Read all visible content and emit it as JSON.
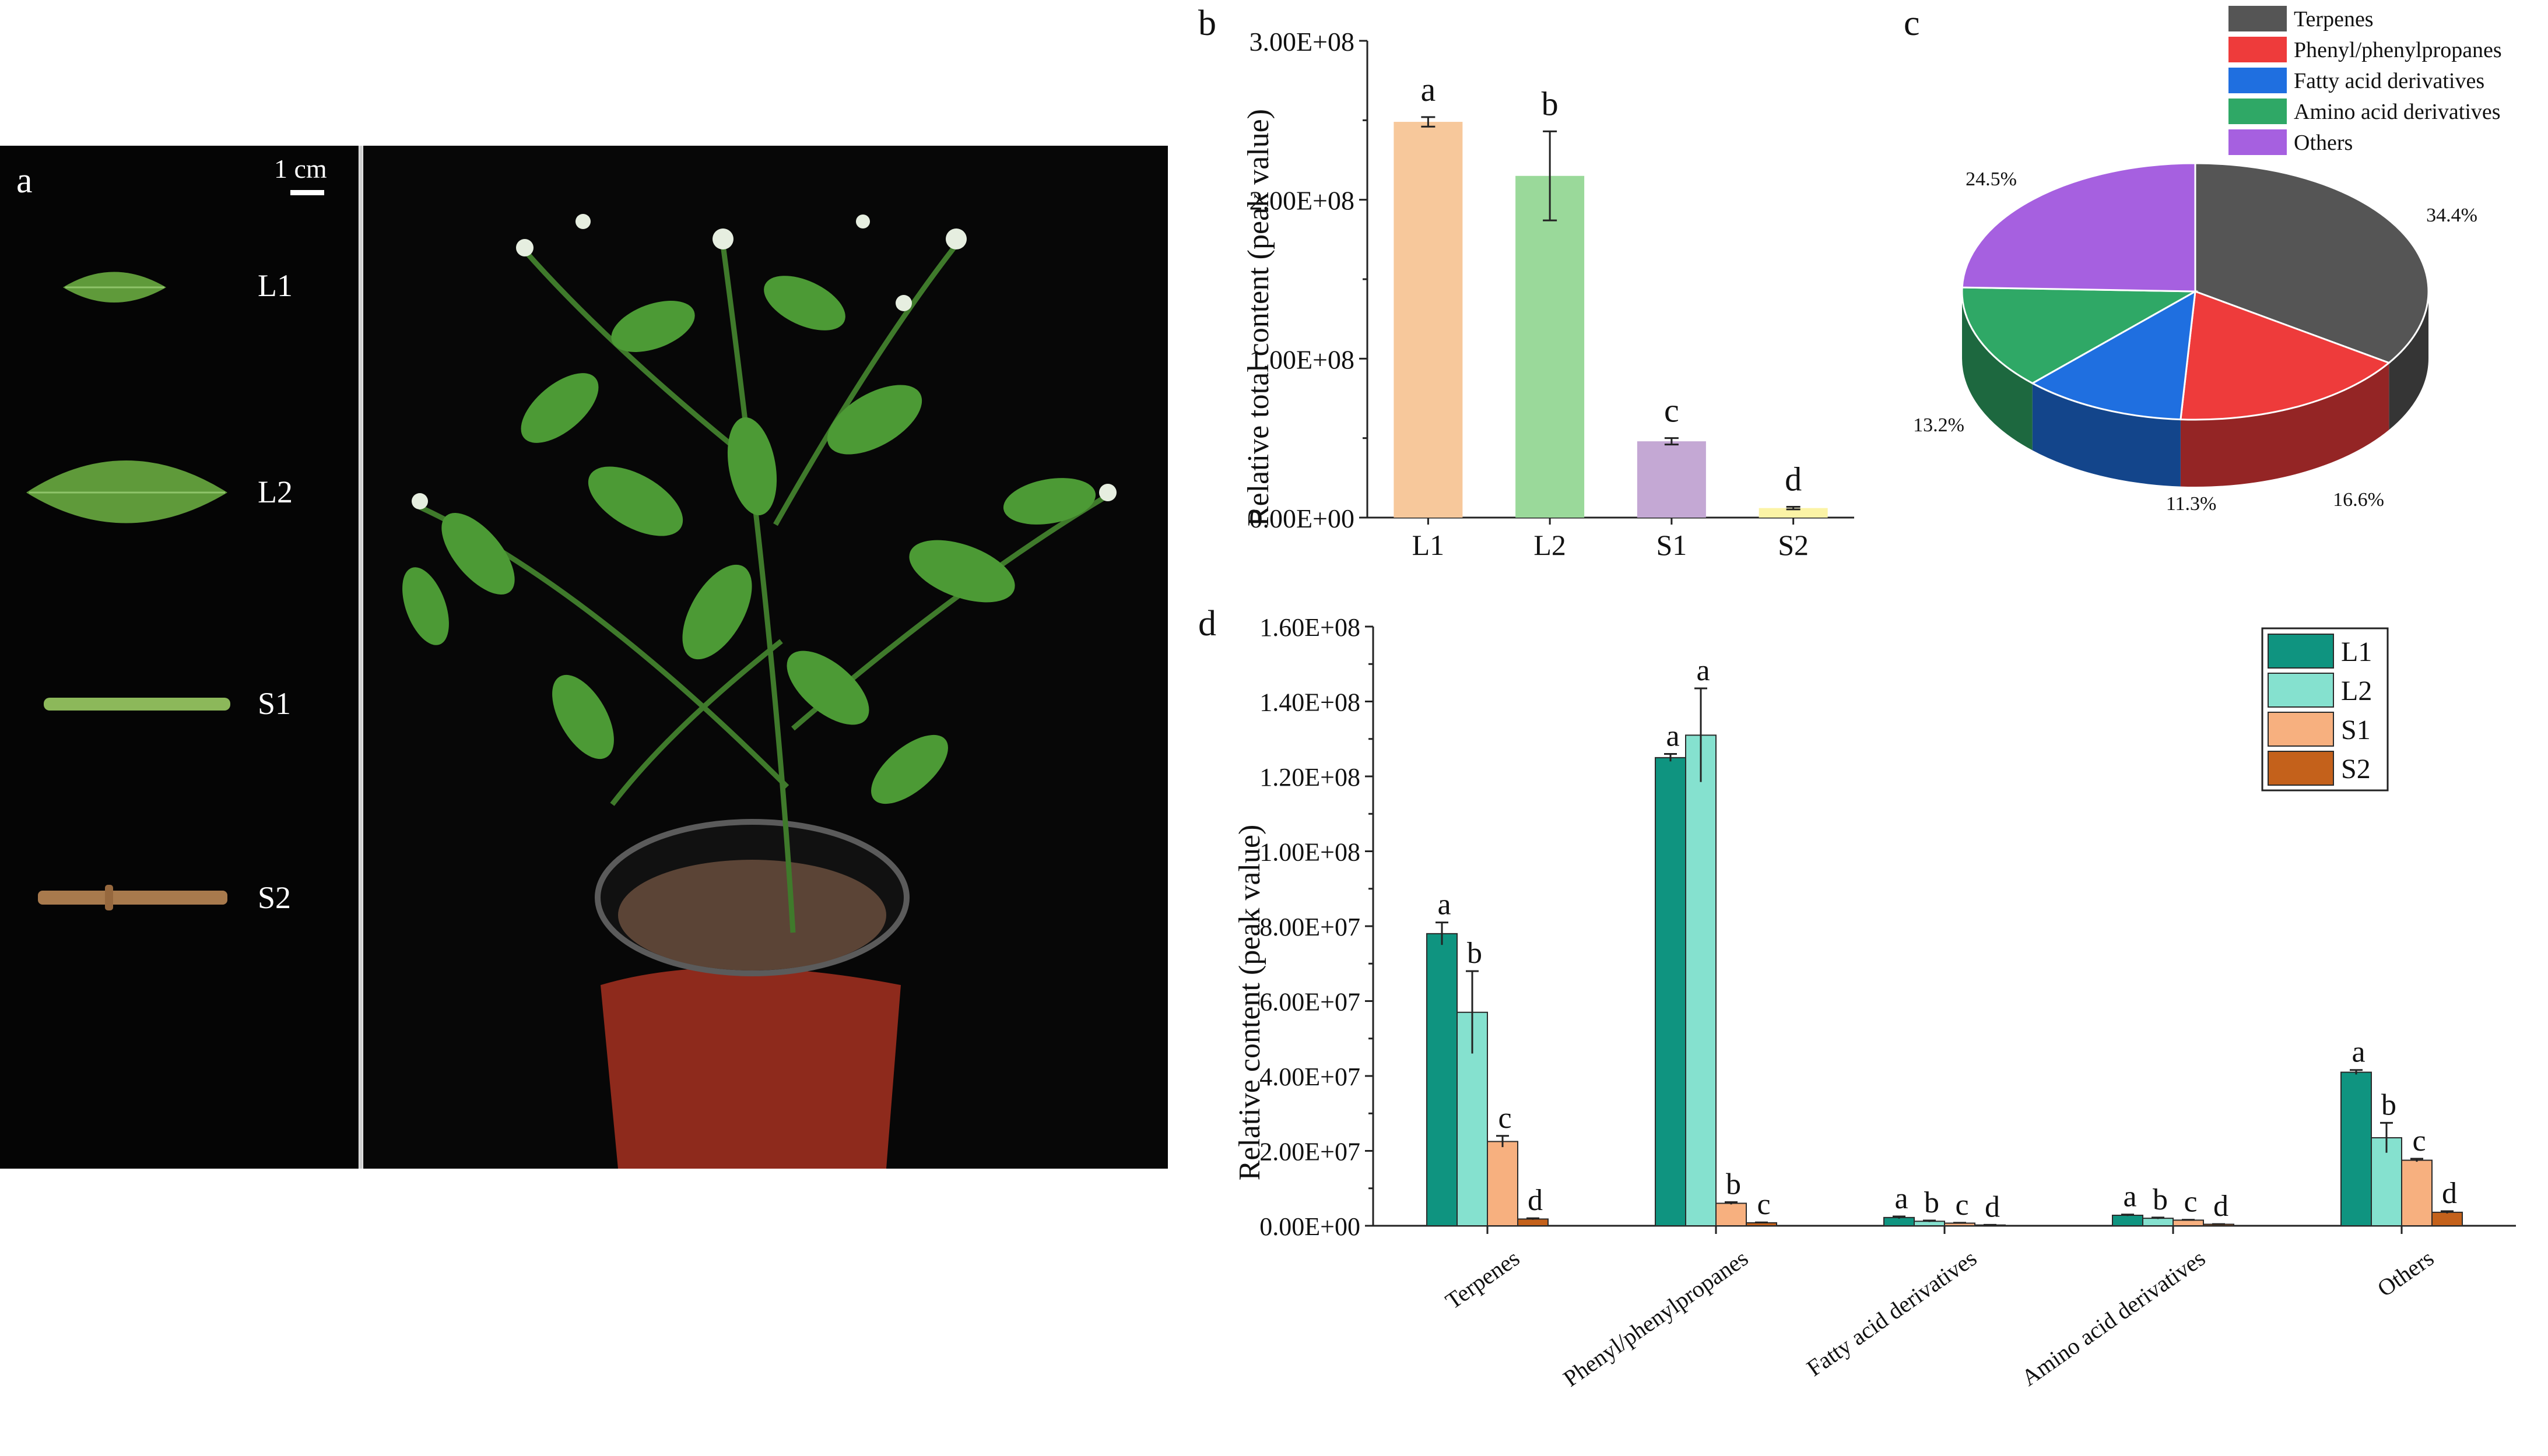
{
  "panel_letters": {
    "a": "a",
    "b": "b",
    "c": "c",
    "d": "d"
  },
  "photo": {
    "scale_label": "1 cm",
    "samples": [
      {
        "label": "L1",
        "description": "small leaf"
      },
      {
        "label": "L2",
        "description": "large leaf"
      },
      {
        "label": "S1",
        "description": "green stem"
      },
      {
        "label": "S2",
        "description": "brown stem"
      }
    ],
    "colors": {
      "background": "#050505",
      "leaf": "#5f9a3a",
      "stem_green": "#8cb85a",
      "stem_brown": "#a87a4d",
      "pot": "#8e2a1c"
    }
  },
  "chart_data": [
    {
      "id": "b",
      "type": "bar",
      "title": "",
      "xlabel": "",
      "ylabel": "Relative total content (peak value)",
      "categories": [
        "L1",
        "L2",
        "S1",
        "S2"
      ],
      "values": [
        249000000,
        215000000,
        48000000,
        6000000
      ],
      "errors": [
        3000000,
        28000000,
        2000000,
        800000
      ],
      "letters": [
        "a",
        "b",
        "c",
        "d"
      ],
      "colors": [
        "#f7c89b",
        "#9ad99a",
        "#c4a8d4",
        "#fbf3a6"
      ],
      "ylim": [
        0,
        300000000
      ],
      "yticks": [
        0,
        100000000,
        200000000,
        300000000
      ],
      "ytick_labels": [
        "0.00E+00",
        "1.00E+08",
        "2.00E+08",
        "3.00E+08"
      ],
      "grid": false
    },
    {
      "id": "c",
      "type": "pie",
      "title": "",
      "labels": [
        "Terpenes",
        "Phenyl/phenylpropanes",
        "Fatty acid derivatives",
        "Amino acid derivatives",
        "Others"
      ],
      "values": [
        34.4,
        16.6,
        11.3,
        13.2,
        24.5
      ],
      "value_labels": [
        "34.4%",
        "16.6%",
        "11.3%",
        "13.2%",
        "24.5%"
      ],
      "colors": [
        "#555555",
        "#ee3b3b",
        "#1f6fe0",
        "#2fa866",
        "#a660e0"
      ],
      "legend_position": "top-right"
    },
    {
      "id": "d",
      "type": "bar",
      "title": "",
      "xlabel": "",
      "ylabel": "Relative  content (peak value)",
      "categories": [
        "Terpenes",
        "Phenyl/phenylpropanes",
        "Fatty acid derivatives",
        "Amino acid derivatives",
        "Others"
      ],
      "series": [
        {
          "name": "L1",
          "color": "#0f9480",
          "values": [
            78000000,
            125000000,
            2200000,
            2800000,
            41000000
          ],
          "errors": [
            3000000,
            1000000,
            300000,
            200000,
            600000
          ],
          "letters": [
            "a",
            "a",
            "a",
            "a",
            "a"
          ]
        },
        {
          "name": "L2",
          "color": "#85e1cf",
          "values": [
            57000000,
            131000000,
            1200000,
            2000000,
            23500000
          ],
          "errors": [
            11000000,
            12500000,
            200000,
            200000,
            4000000
          ],
          "letters": [
            "b",
            "a",
            "b",
            "b",
            "b"
          ]
        },
        {
          "name": "S1",
          "color": "#f7b07f",
          "values": [
            22500000,
            6000000,
            700000,
            1500000,
            17500000
          ],
          "errors": [
            1500000,
            300000,
            100000,
            100000,
            400000
          ],
          "letters": [
            "c",
            "b",
            "c",
            "c",
            "c"
          ]
        },
        {
          "name": "S2",
          "color": "#c4611b",
          "values": [
            1800000,
            800000,
            200000,
            400000,
            3600000
          ],
          "errors": [
            200000,
            100000,
            50000,
            50000,
            300000
          ],
          "letters": [
            "d",
            "c",
            "d",
            "d",
            "d"
          ]
        }
      ],
      "ylim": [
        0,
        160000000
      ],
      "yticks": [
        0,
        20000000,
        40000000,
        60000000,
        80000000,
        100000000,
        120000000,
        140000000,
        160000000
      ],
      "ytick_labels": [
        "0.00E+00",
        "2.00E+07",
        "4.00E+07",
        "6.00E+07",
        "8.00E+07",
        "1.00E+08",
        "1.20E+08",
        "1.40E+08",
        "1.60E+08"
      ],
      "legend_position": "top-right",
      "grid": false
    }
  ]
}
